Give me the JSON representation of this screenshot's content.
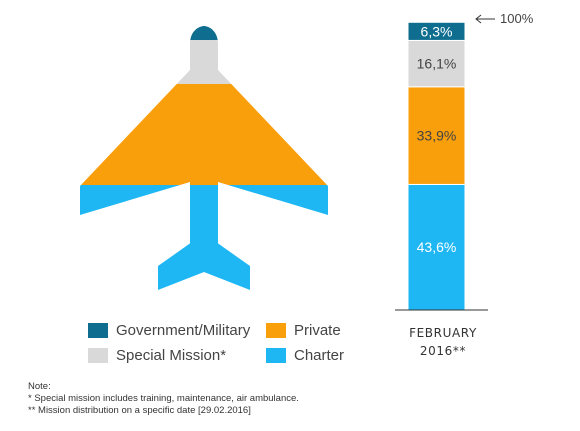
{
  "colors": {
    "government_military": "#0f6e8f",
    "special_mission": "#d9d9d9",
    "private": "#f99f0b",
    "charter": "#1eb7f4"
  },
  "chart_data": {
    "type": "bar",
    "stacked": true,
    "categories": [
      "FEBRUARY 2016**"
    ],
    "series": [
      {
        "name": "Charter",
        "values": [
          43.6
        ],
        "label": "43,6%"
      },
      {
        "name": "Private",
        "values": [
          33.9
        ],
        "label": "33,9%"
      },
      {
        "name": "Special Mission*",
        "values": [
          16.1
        ],
        "label": "16,1%"
      },
      {
        "name": "Government/Military",
        "values": [
          6.3
        ],
        "label": "6,3%"
      }
    ],
    "total_marker": "100%",
    "ylim": [
      0,
      100
    ],
    "legend_position": "bottom-left",
    "grid": false
  },
  "legend": {
    "items": [
      {
        "label": "Government/Military",
        "color_key": "government_military"
      },
      {
        "label": "Private",
        "color_key": "private"
      },
      {
        "label": "Special Mission*",
        "color_key": "special_mission"
      },
      {
        "label": "Charter",
        "color_key": "charter"
      }
    ]
  },
  "period": {
    "line1": "FEBRUARY",
    "line2": "2016**"
  },
  "notes": {
    "title": "Note:",
    "line1": "* Special mission includes training, maintenance, air ambulance.",
    "line2": "** Mission distribution on a specific date [29.02.2016]"
  },
  "plane_icon": "airplane-icon"
}
